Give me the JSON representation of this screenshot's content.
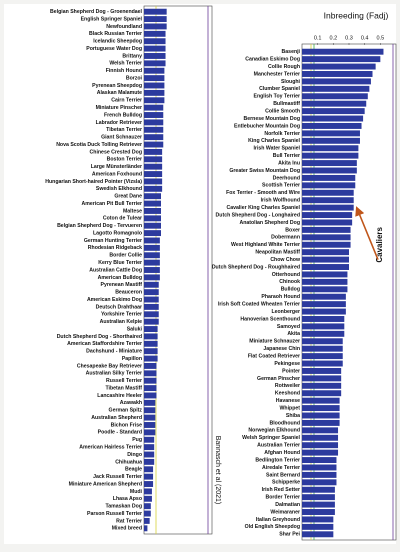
{
  "chart_data": [
    {
      "type": "bar",
      "orientation": "horizontal",
      "source": "Bannasch et al (2021)",
      "color": "#2c3a9e",
      "categories": [
        "Belgian Shepherd Dog - Groenendael",
        "English Springer Spaniel",
        "Newfoundland",
        "Black Russian Terrier",
        "Icelandic Sheepdog",
        "Portuguese Water Dog",
        "Brittany",
        "Welsh Terrier",
        "Finnish Hound",
        "Borzoi",
        "Pyrenean Sheepdog",
        "Alaskan Malamute",
        "Cairn Terrier",
        "Miniature Pinscher",
        "French Bulldog",
        "Labrador Retriever",
        "Tibetan Terrier",
        "Giant Schnauzer",
        "Nova Scotia Duck Tolling Retriever",
        "Chinese Crested Dog",
        "Boston Terrier",
        "Large Münsterländer",
        "American Foxhound",
        "Hungarian Short-haired Pointer (Vizsla)",
        "Swedish Elkhound",
        "Great Dane",
        "American Pit Bull Terrier",
        "Maltese",
        "Coton de Tulear",
        "Belgian Shepherd Dog - Tervueren",
        "Lagotto Romagnolo",
        "German Hunting Terrier",
        "Rhodesian Ridgeback",
        "Border Collie",
        "Kerry Blue Terrier",
        "Australian Cattle Dog",
        "American Bulldog",
        "Pyrenean Mastiff",
        "Beauceron",
        "American Eskimo Dog",
        "Deutsch Drahthaar",
        "Yorkshire Terrier",
        "Australian Kelpie",
        "Saluki",
        "Dutch Shepherd Dog - Shorthaired",
        "American Staffordshire Terrier",
        "Dachshund - Miniature",
        "Papillon",
        "Chesapeake Bay Retriever",
        "Australian Silky Terrier",
        "Russell Terrier",
        "Tibetan Mastiff",
        "Lancashire Heeler",
        "Azawakh",
        "German Spitz",
        "Australian Shepherd",
        "Bichon Frise",
        "Poodle - Standard",
        "Pug",
        "American Hairless Terrier",
        "Dingo",
        "Chihuahua",
        "Beagle",
        "Jack Russell Terrier",
        "Miniature American Shepherd",
        "Mudi",
        "Lhasa Apso",
        "Tamaskan Dog",
        "Parson Russell Terrier",
        "Rat Terrier",
        "Mixed breed"
      ],
      "values": [
        0.2,
        0.2,
        0.2,
        0.19,
        0.19,
        0.19,
        0.19,
        0.19,
        0.18,
        0.18,
        0.18,
        0.18,
        0.18,
        0.17,
        0.17,
        0.17,
        0.17,
        0.17,
        0.17,
        0.16,
        0.16,
        0.16,
        0.16,
        0.16,
        0.16,
        0.15,
        0.15,
        0.15,
        0.15,
        0.15,
        0.15,
        0.14,
        0.14,
        0.14,
        0.14,
        0.14,
        0.14,
        0.13,
        0.13,
        0.13,
        0.13,
        0.13,
        0.13,
        0.12,
        0.12,
        0.12,
        0.12,
        0.12,
        0.11,
        0.11,
        0.11,
        0.11,
        0.11,
        0.1,
        0.1,
        0.1,
        0.1,
        0.1,
        0.09,
        0.09,
        0.09,
        0.09,
        0.08,
        0.08,
        0.08,
        0.07,
        0.07,
        0.06,
        0.06,
        0.05,
        0.03
      ],
      "xlim": [
        0,
        0.6
      ]
    },
    {
      "type": "bar",
      "orientation": "horizontal",
      "title": "Inbreeding (Fadj)",
      "annotation": "Cavaliers",
      "color": "#2c3a9e",
      "categories": [
        "Basenji",
        "Canadian Eskimo Dog",
        "Collie Rough",
        "Manchester Terrier",
        "Sloughi",
        "Clumber Spaniel",
        "English Toy Terrier",
        "Bullmastiff",
        "Collie Smooth",
        "Bernese Mountain Dog",
        "Entlebucher Mountain Dog",
        "Norfolk Terrier",
        "King Charles Spaniel",
        "Irish Water Spaniel",
        "Bull Terrier",
        "Akita Inu",
        "Greater Swiss Mountain Dog",
        "Deerhound",
        "Scottish Terrier",
        "Fox Terrier - Smooth and Wire",
        "Irish Wolfhound",
        "Cavalier King Charles Spaniel",
        "Dutch Shepherd Dog - Longhaired",
        "Anatolian Shepherd Dog",
        "Boxer",
        "Dobermann",
        "West Highland White Terrier",
        "Neapolitan Mastiff",
        "Chow Chow",
        "Dutch Shepherd Dog - Roughhaired",
        "Otterhound",
        "Chinook",
        "Bulldog",
        "Pharaoh Hound",
        "Irish Soft Coated Wheaten Terrier",
        "Leonberger",
        "Hanoverian Scenthound",
        "Samoyed",
        "Akita",
        "Miniature Schnauzer",
        "Japanese Chin",
        "Flat Coated Retriever",
        "Pekingese",
        "Pointer",
        "German Pinscher",
        "Rottweiler",
        "Keeshond",
        "Havanese",
        "Whippet",
        "Shiba",
        "Bloodhound",
        "Norwegian Elkhound",
        "Welsh Springer Spaniel",
        "Australian Terrier",
        "Afghan Hound",
        "Bedlington Terrier",
        "Airedale Terrier",
        "Saint Bernard",
        "Schipperke",
        "Irish Red Setter",
        "Border Terrier",
        "Dalmatian",
        "Weimaraner",
        "Italian Greyhound",
        "Old English Sheepdog",
        "Shar Pei"
      ],
      "values": [
        0.52,
        0.5,
        0.47,
        0.45,
        0.44,
        0.43,
        0.42,
        0.41,
        0.4,
        0.39,
        0.38,
        0.37,
        0.37,
        0.36,
        0.36,
        0.35,
        0.35,
        0.34,
        0.34,
        0.33,
        0.33,
        0.33,
        0.32,
        0.32,
        0.31,
        0.31,
        0.31,
        0.3,
        0.3,
        0.3,
        0.29,
        0.29,
        0.29,
        0.28,
        0.28,
        0.28,
        0.27,
        0.27,
        0.27,
        0.26,
        0.26,
        0.26,
        0.26,
        0.25,
        0.25,
        0.25,
        0.25,
        0.24,
        0.24,
        0.24,
        0.24,
        0.23,
        0.23,
        0.23,
        0.23,
        0.22,
        0.22,
        0.22,
        0.22,
        0.21,
        0.21,
        0.21,
        0.21,
        0.2,
        0.2,
        0.2
      ],
      "xlim": [
        0,
        0.6
      ],
      "xticks": [
        0.1,
        0.2,
        0.3,
        0.4,
        0.5
      ],
      "highlight": "Cavalier King Charles Spaniel"
    }
  ]
}
